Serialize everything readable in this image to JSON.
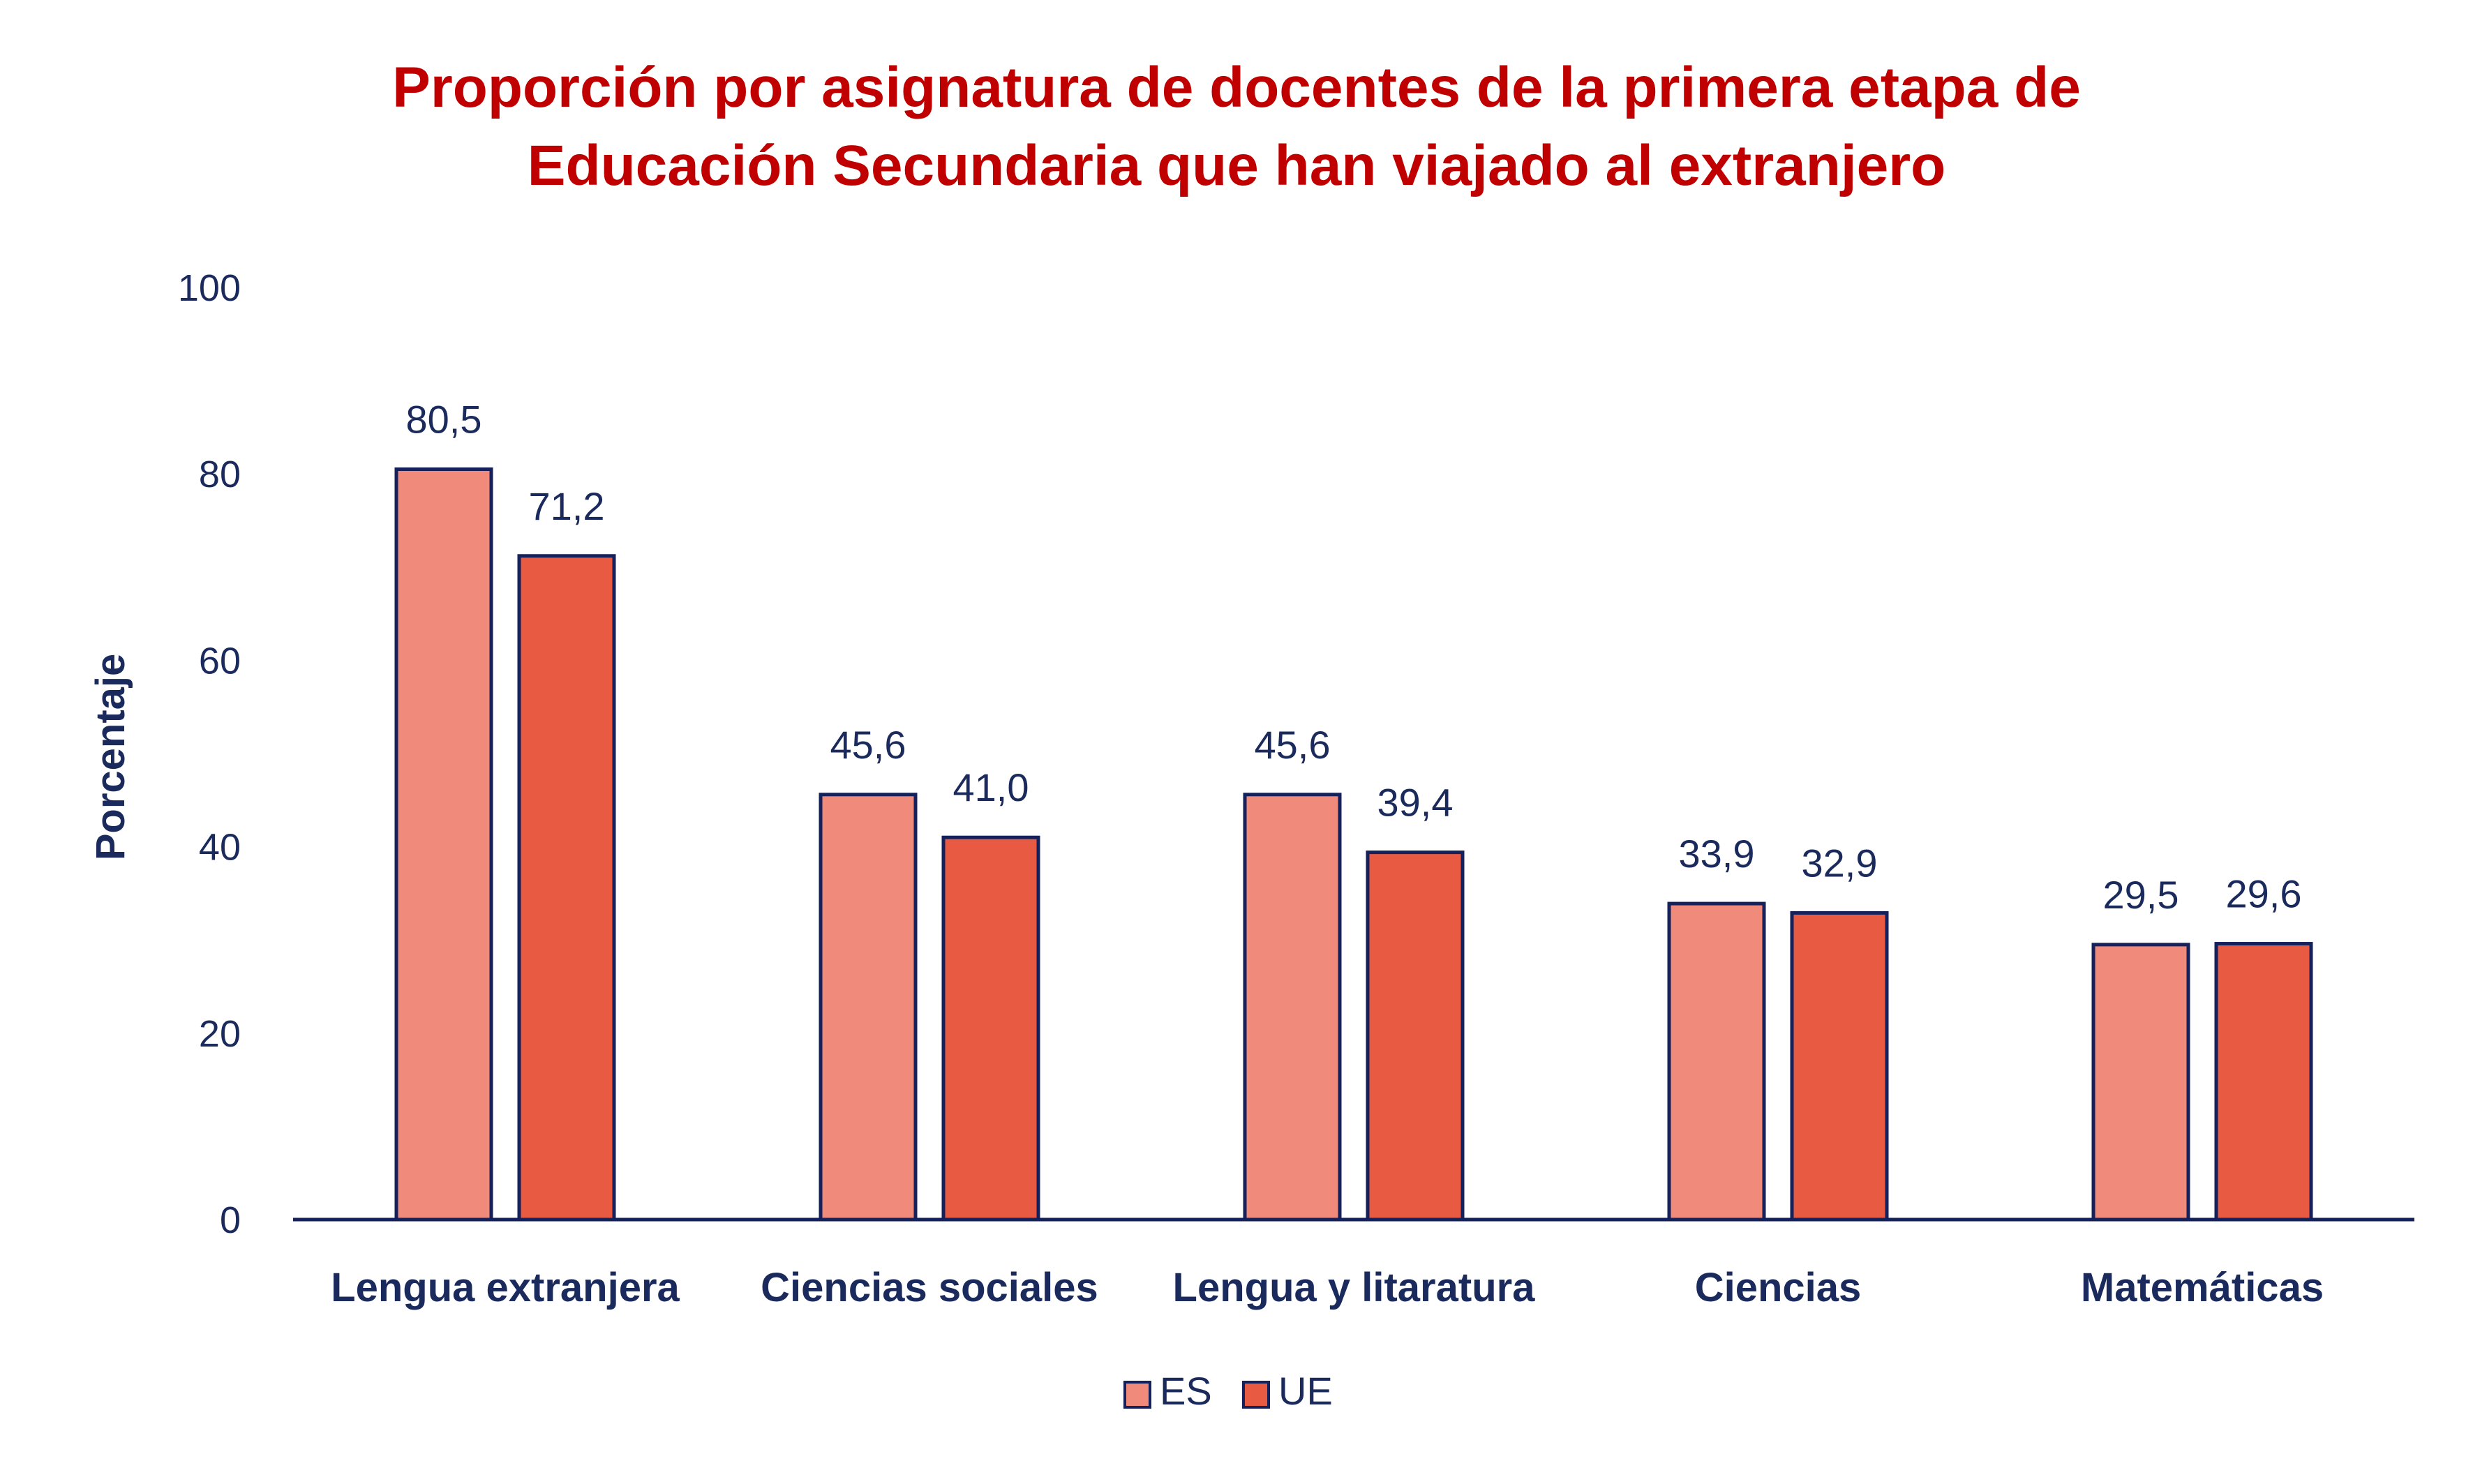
{
  "chart_data": {
    "type": "bar",
    "title_lines": [
      "Proporción por asignatura de docentes de la primera etapa de",
      "Educación Secundaria que han viajado al extranjero"
    ],
    "xlabel": "",
    "ylabel": "Porcentaje",
    "ylim": [
      0,
      100
    ],
    "yticks": [
      "0",
      "20",
      "40",
      "60",
      "80",
      "100"
    ],
    "categories": [
      "Lengua extranjera",
      "Ciencias sociales",
      "Lengua y litaratura",
      "Ciencias",
      "Matemáticas"
    ],
    "series": [
      {
        "name": "ES",
        "color": "#f08a7a",
        "values": [
          80.5,
          45.6,
          45.6,
          33.9,
          29.5
        ],
        "labels": [
          "80,5",
          "45,6",
          "45,6",
          "33,9",
          "29,5"
        ]
      },
      {
        "name": "UE",
        "color": "#e85a42",
        "values": [
          71.2,
          41.0,
          39.4,
          32.9,
          29.6
        ],
        "labels": [
          "71,2",
          "41,0",
          "39,4",
          "32,9",
          "29,6"
        ]
      }
    ],
    "grid": false,
    "legend_position": "bottom",
    "outline_color": "#14215a",
    "text_color": "#1b2a5c",
    "title_color": "#c00000"
  }
}
